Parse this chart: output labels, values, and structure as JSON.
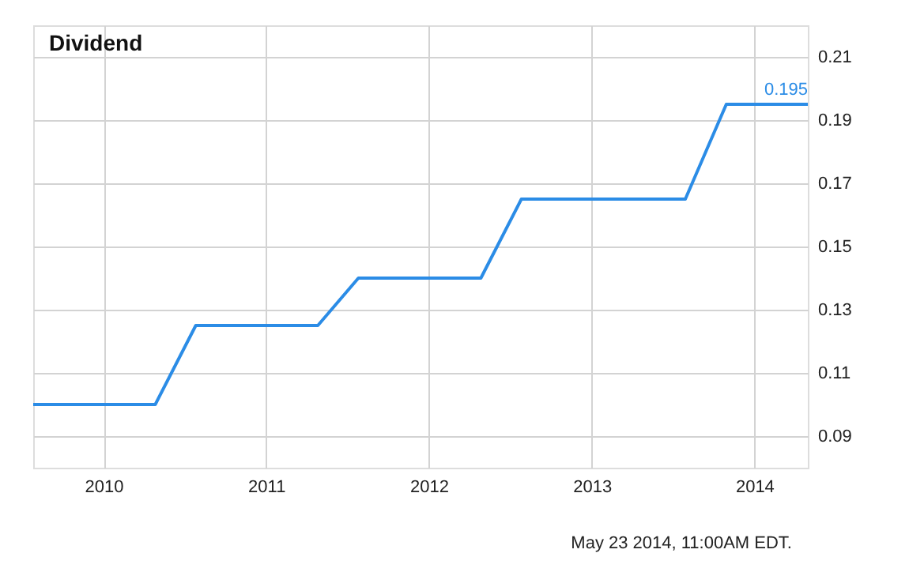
{
  "chart_data": {
    "type": "line",
    "title": "Dividend",
    "x": [
      "2009-07-27",
      "2010-04-27",
      "2010-07-27",
      "2011-04-27",
      "2011-07-27",
      "2012-04-27",
      "2012-07-27",
      "2013-07-30",
      "2013-10-30",
      "2014-05-01"
    ],
    "series": [
      {
        "color": "#2b8ce6",
        "values": [
          0.1,
          0.1,
          0.125,
          0.125,
          0.14,
          0.14,
          0.165,
          0.165,
          0.195,
          0.195
        ],
        "value_labels": [
          null,
          null,
          null,
          null,
          null,
          null,
          null,
          null,
          null,
          "0.195"
        ]
      }
    ],
    "xlim": [
      "2009-07-27",
      "2014-05-01"
    ],
    "xticks": [
      "2010",
      "2011",
      "2012",
      "2013",
      "2014"
    ],
    "ylim": [
      0.08,
      0.22
    ],
    "yticks": [
      0.09,
      0.11,
      0.13,
      0.15,
      0.17,
      0.19,
      0.21
    ],
    "grid": true,
    "marker": "none",
    "line_style": "solid",
    "annotations": [
      "May 23 2014, 11:00AM EDT."
    ]
  }
}
